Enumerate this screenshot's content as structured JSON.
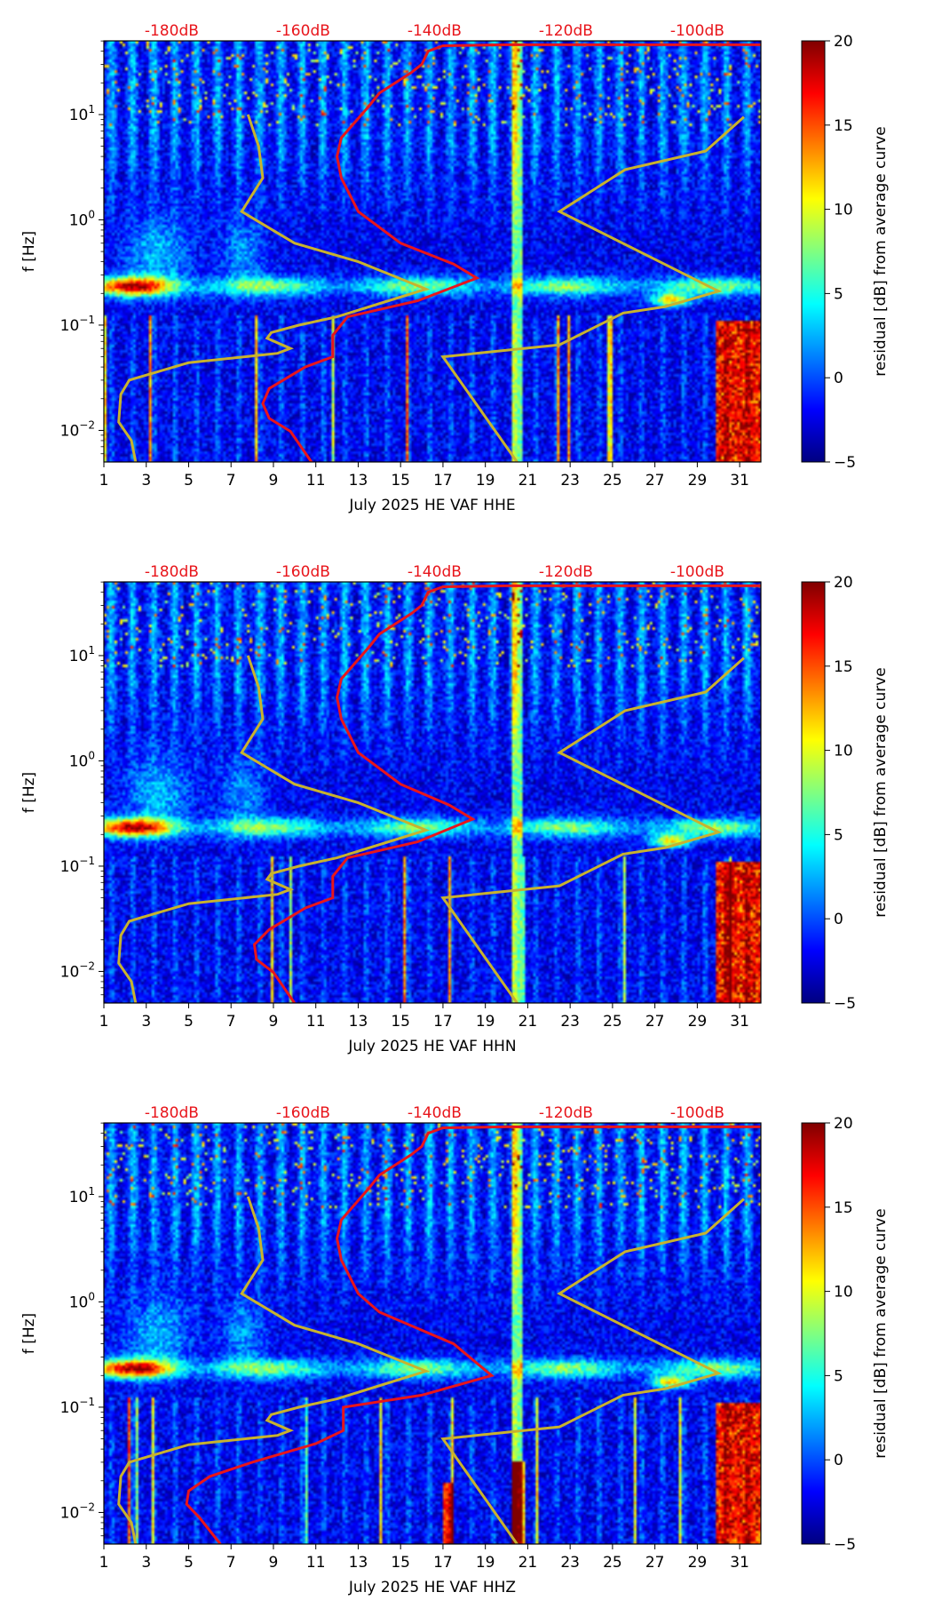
{
  "colors": {
    "median_curve": "#e8151b",
    "noise_model": "#c8b22e",
    "db_label": "#e8151b",
    "axis": "#000000"
  },
  "colorbar": {
    "label": "residual [dB] from average curve",
    "range": [
      -5,
      20
    ],
    "ticks": [
      "20",
      "15",
      "10",
      "5",
      "0",
      "−5"
    ],
    "tick_values": [
      20,
      15,
      10,
      5,
      0,
      -5
    ]
  },
  "axes": {
    "ylabel": "f [Hz]",
    "ytick_labels": [
      {
        "base": "10",
        "exp": "1",
        "value": 10
      },
      {
        "base": "10",
        "exp": "0",
        "value": 1
      },
      {
        "base": "10",
        "exp": "−1",
        "value": 0.1
      },
      {
        "base": "10",
        "exp": "−2",
        "value": 0.01
      }
    ],
    "xtick_labels": [
      "1",
      "3",
      "5",
      "7",
      "9",
      "11",
      "13",
      "15",
      "17",
      "19",
      "21",
      "23",
      "25",
      "27",
      "29",
      "31"
    ],
    "xlim": [
      1,
      32
    ],
    "ylim_log10": [
      -2.3,
      1.7
    ],
    "top_labels": [
      "-180dB",
      "-160dB",
      "-140dB",
      "-120dB",
      "-100dB"
    ],
    "top_label_days": [
      4.2,
      10.4,
      16.6,
      22.8,
      29.0
    ]
  },
  "chart_data": [
    {
      "type": "heatmap",
      "title": "July 2025 HE VAF  HHE",
      "xlabel": "July 2025 HE VAF  HHE",
      "ylabel": "f [Hz]",
      "median_curve": [
        [
          10.8,
          0.005
        ],
        [
          9.8,
          0.0098
        ],
        [
          8.8,
          0.013
        ],
        [
          8.5,
          0.018
        ],
        [
          8.8,
          0.025
        ],
        [
          10.5,
          0.04
        ],
        [
          11.8,
          0.05
        ],
        [
          11.8,
          0.08
        ],
        [
          12.5,
          0.12
        ],
        [
          15.8,
          0.17
        ],
        [
          18.6,
          0.28
        ],
        [
          17.5,
          0.38
        ],
        [
          15,
          0.6
        ],
        [
          13,
          1.2
        ],
        [
          12.2,
          2.5
        ],
        [
          12,
          4
        ],
        [
          12.2,
          6
        ],
        [
          13.5,
          12
        ],
        [
          14,
          16
        ],
        [
          15.5,
          25
        ],
        [
          16,
          30
        ],
        [
          16.3,
          40
        ],
        [
          17,
          45
        ],
        [
          20,
          46
        ],
        [
          26,
          46
        ],
        [
          32,
          46
        ]
      ],
      "noise_model": [
        [
          2.5,
          0.005
        ],
        [
          2.3,
          0.008
        ],
        [
          1.7,
          0.012
        ],
        [
          1.8,
          0.022
        ],
        [
          2.2,
          0.03
        ],
        [
          5,
          0.044
        ],
        [
          9.2,
          0.054
        ],
        [
          9.8,
          0.06
        ],
        [
          8.7,
          0.075
        ],
        [
          8.9,
          0.085
        ],
        [
          10.2,
          0.1
        ],
        [
          12,
          0.12
        ],
        [
          16.2,
          0.22
        ],
        [
          13,
          0.4
        ],
        [
          10,
          0.6
        ],
        [
          7.5,
          1.2
        ],
        [
          8.5,
          2.5
        ],
        [
          8.3,
          5
        ],
        [
          7.8,
          10
        ]
      ],
      "noise_model_high": [
        [
          20.5,
          0.005
        ],
        [
          17,
          0.05
        ],
        [
          22.5,
          0.065
        ],
        [
          25.5,
          0.13
        ],
        [
          27.5,
          0.15
        ],
        [
          30,
          0.21
        ],
        [
          22.5,
          1.2
        ],
        [
          25.6,
          3
        ],
        [
          29.4,
          4.5
        ],
        [
          31.2,
          9.5
        ]
      ]
    },
    {
      "type": "heatmap",
      "title": "July 2025 HE VAF  HHN",
      "xlabel": "July 2025 HE VAF  HHN",
      "ylabel": "f [Hz]",
      "median_curve": [
        [
          10,
          0.005
        ],
        [
          9,
          0.0098
        ],
        [
          8.2,
          0.013
        ],
        [
          8.1,
          0.018
        ],
        [
          8.8,
          0.025
        ],
        [
          10.5,
          0.04
        ],
        [
          11.8,
          0.05
        ],
        [
          11.8,
          0.08
        ],
        [
          12.5,
          0.12
        ],
        [
          15.8,
          0.17
        ],
        [
          18.4,
          0.28
        ],
        [
          17.3,
          0.38
        ],
        [
          15,
          0.6
        ],
        [
          13,
          1.2
        ],
        [
          12.2,
          2.5
        ],
        [
          12,
          4
        ],
        [
          12.2,
          6
        ],
        [
          13.5,
          12
        ],
        [
          14,
          16
        ],
        [
          15.5,
          25
        ],
        [
          16,
          30
        ],
        [
          16.3,
          40
        ],
        [
          17,
          45
        ],
        [
          20,
          46
        ],
        [
          26,
          46
        ],
        [
          32,
          46
        ]
      ],
      "noise_model": [
        [
          2.5,
          0.005
        ],
        [
          2.3,
          0.008
        ],
        [
          1.7,
          0.012
        ],
        [
          1.8,
          0.022
        ],
        [
          2.2,
          0.03
        ],
        [
          5,
          0.044
        ],
        [
          9.2,
          0.054
        ],
        [
          9.8,
          0.06
        ],
        [
          8.7,
          0.075
        ],
        [
          8.9,
          0.085
        ],
        [
          10.2,
          0.1
        ],
        [
          12,
          0.12
        ],
        [
          16.2,
          0.22
        ],
        [
          13,
          0.4
        ],
        [
          10,
          0.6
        ],
        [
          7.5,
          1.2
        ],
        [
          8.5,
          2.5
        ],
        [
          8.3,
          5
        ],
        [
          7.8,
          10
        ]
      ],
      "noise_model_high": [
        [
          20.5,
          0.005
        ],
        [
          17,
          0.05
        ],
        [
          22.5,
          0.065
        ],
        [
          25.5,
          0.13
        ],
        [
          27.5,
          0.15
        ],
        [
          30,
          0.21
        ],
        [
          22.5,
          1.2
        ],
        [
          25.6,
          3
        ],
        [
          29.4,
          4.5
        ],
        [
          31.2,
          9.5
        ]
      ]
    },
    {
      "type": "heatmap",
      "title": "July 2025 HE VAF  HHZ",
      "xlabel": "July 2025 HE VAF  HHZ",
      "ylabel": "f [Hz]",
      "median_curve": [
        [
          6.5,
          0.005
        ],
        [
          5.5,
          0.009
        ],
        [
          4.9,
          0.012
        ],
        [
          5,
          0.016
        ],
        [
          6,
          0.022
        ],
        [
          8,
          0.03
        ],
        [
          11,
          0.045
        ],
        [
          12.3,
          0.06
        ],
        [
          12.3,
          0.1
        ],
        [
          16,
          0.13
        ],
        [
          19.3,
          0.2
        ],
        [
          17.5,
          0.4
        ],
        [
          14,
          0.8
        ],
        [
          13,
          1.2
        ],
        [
          12.2,
          2.5
        ],
        [
          12,
          4
        ],
        [
          12.2,
          6
        ],
        [
          13.5,
          12
        ],
        [
          14,
          16
        ],
        [
          15.5,
          25
        ],
        [
          16,
          30
        ],
        [
          16.3,
          40
        ],
        [
          17,
          45
        ],
        [
          20,
          46
        ],
        [
          26,
          46
        ],
        [
          32,
          46
        ]
      ],
      "noise_model": [
        [
          2.5,
          0.005
        ],
        [
          2.3,
          0.008
        ],
        [
          1.7,
          0.012
        ],
        [
          1.8,
          0.022
        ],
        [
          2.2,
          0.03
        ],
        [
          5,
          0.044
        ],
        [
          9.2,
          0.054
        ],
        [
          9.8,
          0.06
        ],
        [
          8.7,
          0.075
        ],
        [
          8.9,
          0.085
        ],
        [
          10.2,
          0.1
        ],
        [
          12,
          0.12
        ],
        [
          16.2,
          0.22
        ],
        [
          13,
          0.4
        ],
        [
          10,
          0.6
        ],
        [
          7.5,
          1.2
        ],
        [
          8.5,
          2.5
        ],
        [
          8.3,
          5
        ],
        [
          7.8,
          10
        ]
      ],
      "noise_model_high": [
        [
          20.5,
          0.005
        ],
        [
          17,
          0.05
        ],
        [
          22.5,
          0.065
        ],
        [
          25.5,
          0.13
        ],
        [
          27.5,
          0.15
        ],
        [
          30,
          0.21
        ],
        [
          22.5,
          1.2
        ],
        [
          25.6,
          3
        ],
        [
          29.4,
          4.5
        ],
        [
          31.2,
          9.5
        ]
      ]
    }
  ]
}
